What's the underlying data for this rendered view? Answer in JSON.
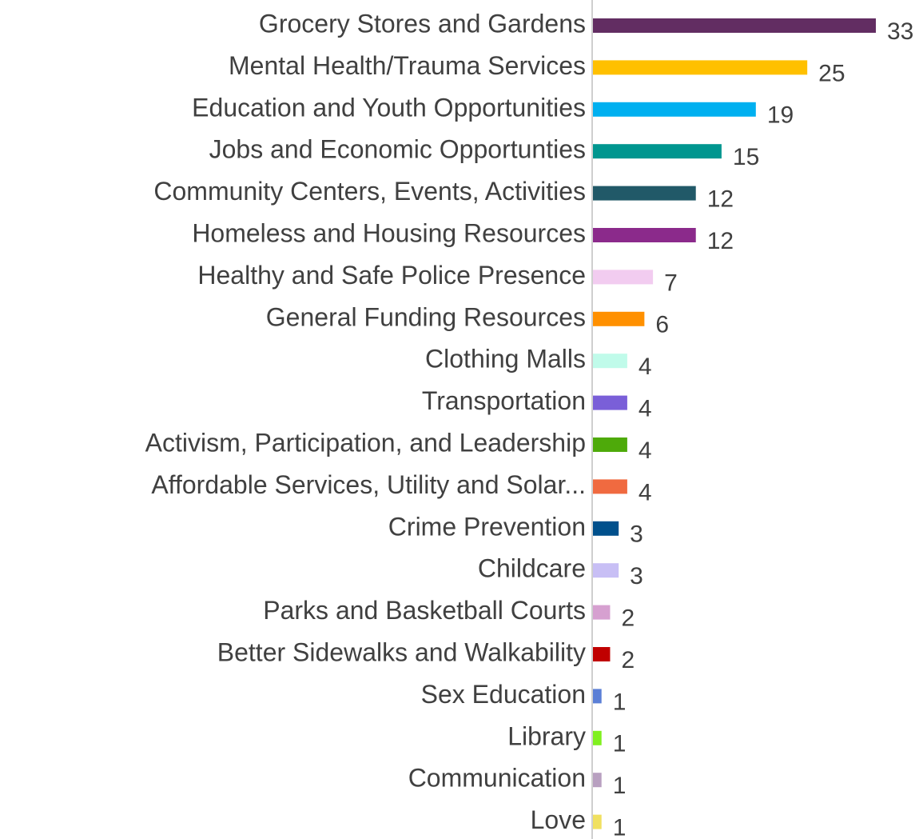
{
  "chart_data": {
    "type": "bar",
    "orientation": "horizontal",
    "categories": [
      "Grocery Stores and Gardens",
      "Mental Health/Trauma Services",
      "Education and Youth Opportunities",
      "Jobs and Economic Opportunties",
      "Community Centers, Events, Activities",
      "Homeless and Housing Resources",
      "Healthy and Safe Police Presence",
      "General Funding Resources",
      "Clothing Malls",
      "Transportation",
      "Activism, Participation, and Leadership",
      "Affordable Services, Utility and Solar...",
      "Crime Prevention",
      "Childcare",
      "Parks and Basketball Courts",
      "Better Sidewalks and Walkability",
      "Sex Education",
      "Library",
      "Communication",
      "Love"
    ],
    "values": [
      33,
      25,
      19,
      15,
      12,
      12,
      7,
      6,
      4,
      4,
      4,
      4,
      3,
      3,
      2,
      2,
      1,
      1,
      1,
      1
    ],
    "colors": [
      "#622d62",
      "#ffc000",
      "#00b0f0",
      "#00968f",
      "#215968",
      "#8b2a8b",
      "#f2ccf0",
      "#ff9000",
      "#c0fbea",
      "#7a5fd8",
      "#4eaa0a",
      "#f06a40",
      "#00508c",
      "#c8bff5",
      "#d6a0d0",
      "#c00000",
      "#5b7fd6",
      "#80f020",
      "#b8a0c0",
      "#f0e060"
    ],
    "data_labels": true
  }
}
